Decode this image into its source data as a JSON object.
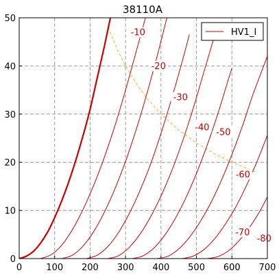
{
  "chart_data": {
    "type": "line",
    "title": "38110A",
    "xlabel": "",
    "ylabel": "",
    "xlim": [
      0,
      700
    ],
    "ylim": [
      0,
      50
    ],
    "xticks": [
      0,
      100,
      200,
      300,
      400,
      500,
      600,
      700
    ],
    "yticks": [
      0,
      10,
      20,
      30,
      40,
      50
    ],
    "grid": true,
    "legend": {
      "placement": "top-right",
      "entries": [
        "HV1_I"
      ]
    },
    "colors": {
      "curve": "#cc0000",
      "dissipation": "#f0b030",
      "grid": "#999999"
    },
    "series": [
      {
        "name": "HV1_I",
        "label": "",
        "bold": true,
        "x": [
          0,
          20,
          40,
          60,
          80,
          100,
          120,
          140,
          160,
          180,
          200,
          220,
          240,
          260
        ],
        "y": [
          0,
          0.5,
          1.5,
          3.2,
          5.5,
          8.5,
          12,
          16,
          20.5,
          25.5,
          31,
          37.5,
          44,
          51
        ]
      },
      {
        "label": "-10",
        "x": [
          60,
          90,
          120,
          150,
          180,
          210,
          240,
          270,
          300,
          330,
          360
        ],
        "y": [
          0,
          0.8,
          2.8,
          6,
          10.2,
          15.2,
          21,
          27.6,
          35,
          43,
          51
        ]
      },
      {
        "label": "-20",
        "x": [
          120,
          150,
          180,
          210,
          240,
          270,
          300,
          330,
          360,
          390,
          420
        ],
        "y": [
          0,
          0.7,
          2.6,
          5.6,
          9.6,
          14.5,
          20.2,
          26.8,
          34.2,
          42.3,
          51
        ]
      },
      {
        "label": "-30",
        "x": [
          190,
          220,
          250,
          280,
          310,
          340,
          370,
          400,
          430,
          460,
          480
        ],
        "y": [
          0,
          0.7,
          2.5,
          5.4,
          9.3,
          14,
          19.5,
          26,
          33.2,
          41,
          46.5
        ]
      },
      {
        "label": "-40",
        "x": [
          250,
          280,
          310,
          340,
          370,
          400,
          430,
          460,
          490,
          520,
          550
        ],
        "y": [
          0,
          0.6,
          2.3,
          5,
          8.6,
          13,
          18.2,
          24.2,
          31,
          38.5,
          46
        ]
      },
      {
        "label": "-50",
        "x": [
          320,
          350,
          380,
          410,
          440,
          470,
          500,
          530,
          560,
          590,
          600
        ],
        "y": [
          0,
          0.6,
          2.2,
          4.8,
          8.3,
          12.6,
          17.7,
          23.5,
          30,
          37.2,
          39.5
        ]
      },
      {
        "label": "-60",
        "x": [
          390,
          420,
          450,
          480,
          510,
          540,
          570,
          600,
          630,
          660,
          700
        ],
        "y": [
          0,
          0.5,
          2,
          4.4,
          7.6,
          11.5,
          16.2,
          21.6,
          27.6,
          34.2,
          42
        ]
      },
      {
        "label": "-70",
        "x": [
          460,
          490,
          520,
          550,
          580,
          610,
          640,
          670,
          700
        ],
        "y": [
          0,
          0.5,
          1.8,
          4,
          7,
          10.6,
          15,
          20,
          25.6
        ]
      },
      {
        "label": "-80",
        "x": [
          530,
          560,
          590,
          620,
          650,
          680,
          700
        ],
        "y": [
          0,
          0.4,
          1.6,
          3.7,
          6.5,
          10,
          12.8
        ]
      }
    ],
    "dissipation_curve": {
      "x": [
        250,
        280,
        300,
        330,
        360,
        400,
        450,
        500,
        550,
        600,
        650,
        670
      ],
      "y": [
        48,
        42.9,
        40,
        36.4,
        33.3,
        30,
        26.7,
        24,
        21.8,
        20,
        18.5,
        17.9
      ]
    },
    "annotations": [
      {
        "text": "-10",
        "x": 335,
        "y": 46.5
      },
      {
        "text": "-20",
        "x": 393,
        "y": 39.5
      },
      {
        "text": "-30",
        "x": 455,
        "y": 33
      },
      {
        "text": "-40",
        "x": 516,
        "y": 26.8
      },
      {
        "text": "-50",
        "x": 576,
        "y": 25.8
      },
      {
        "text": "-60",
        "x": 631,
        "y": 17
      },
      {
        "text": "-70",
        "x": 630,
        "y": 5
      },
      {
        "text": "-80",
        "x": 691,
        "y": 3.7
      }
    ]
  }
}
